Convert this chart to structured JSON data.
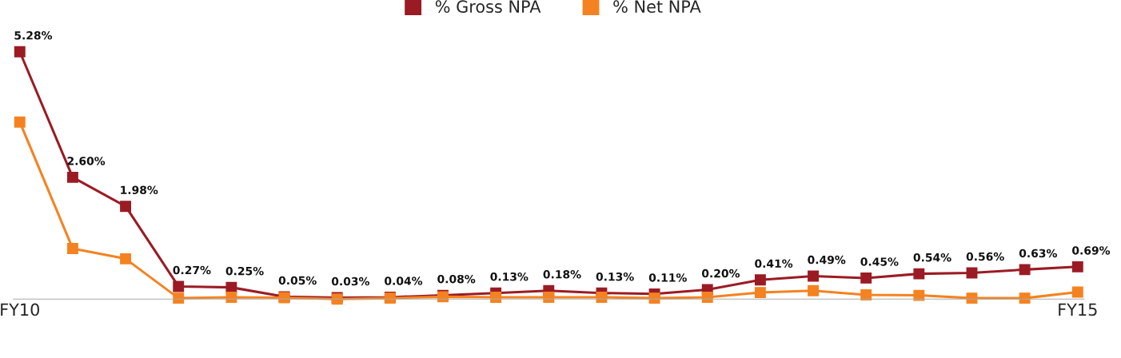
{
  "chart_data": {
    "type": "line",
    "categories": [
      "FY10",
      null,
      null,
      null,
      null,
      null,
      null,
      null,
      null,
      null,
      null,
      null,
      null,
      null,
      null,
      null,
      null,
      null,
      null,
      null,
      "FY15"
    ],
    "series": [
      {
        "name": "% Gross NPA",
        "color": "#9b1b24",
        "values": [
          5.28,
          2.6,
          1.98,
          0.27,
          0.25,
          0.05,
          0.03,
          0.04,
          0.08,
          0.13,
          0.18,
          0.13,
          0.11,
          0.2,
          0.41,
          0.49,
          0.45,
          0.54,
          0.56,
          0.63,
          0.69
        ],
        "value_labels": [
          "5.28%",
          "2.60%",
          "1.98%",
          "0.27%",
          "0.25%",
          "0.05%",
          "0.03%",
          "0.04%",
          "0.08%",
          "0.13%",
          "0.18%",
          "0.13%",
          "0.11%",
          "0.20%",
          "0.41%",
          "0.49%",
          "0.45%",
          "0.54%",
          "0.56%",
          "0.63%",
          "0.69%"
        ]
      },
      {
        "name": "% Net NPA",
        "color": "#f58220",
        "values": [
          3.78,
          1.08,
          0.86,
          0.02,
          0.04,
          0.03,
          0.0,
          0.02,
          0.05,
          0.04,
          0.04,
          0.04,
          0.02,
          0.04,
          0.14,
          0.18,
          0.09,
          0.08,
          0.02,
          0.02,
          0.15
        ]
      }
    ],
    "marker": "square",
    "line_style": "solid",
    "legend": "top",
    "grid": false,
    "tick_labels": "x"
  }
}
